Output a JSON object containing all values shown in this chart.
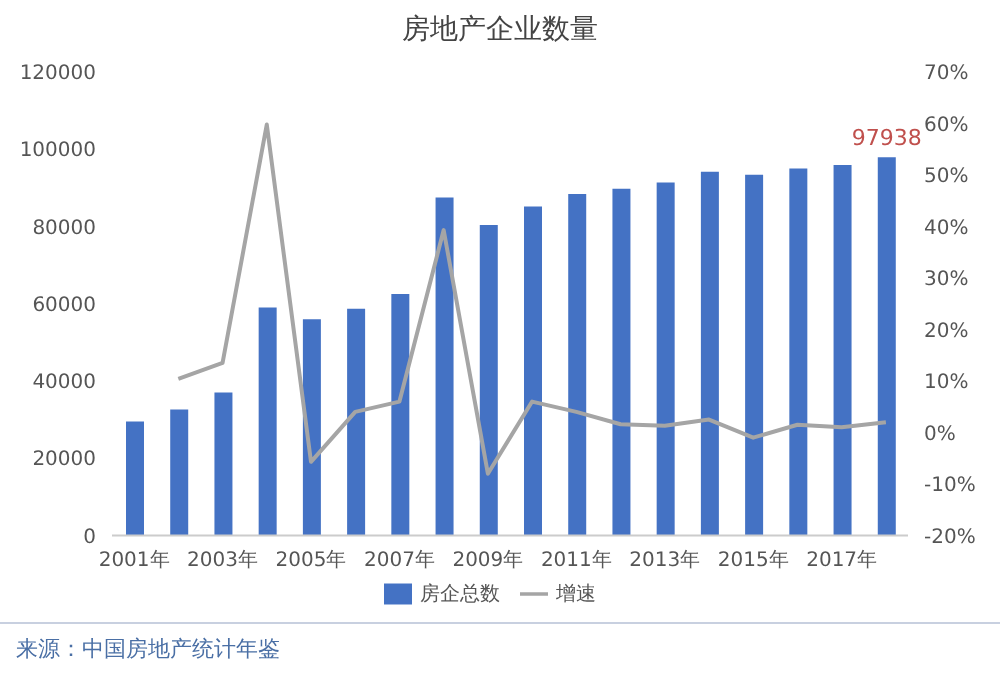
{
  "chart_data": {
    "type": "bar",
    "title": "房地产企业数量",
    "categories": [
      "2001年",
      null,
      "2003年",
      null,
      "2005年",
      null,
      "2007年",
      null,
      "2009年",
      null,
      "2011年",
      null,
      "2013年",
      null,
      "2015年",
      null,
      "2017年",
      null
    ],
    "series": [
      {
        "name": "房企总数",
        "color": "#4472c4",
        "values": [
          29500,
          32600,
          37000,
          59000,
          56000,
          58700,
          62500,
          87500,
          80400,
          85200,
          88400,
          89800,
          91400,
          94200,
          93400,
          95000,
          95900,
          97938
        ],
        "value_labels": [
          null,
          null,
          null,
          null,
          null,
          null,
          null,
          null,
          null,
          null,
          null,
          null,
          null,
          null,
          null,
          null,
          null,
          "97938"
        ]
      },
      {
        "name": "增速",
        "type": "line",
        "axis": "y2",
        "color": "#a5a5a5",
        "values": [
          null,
          10.4,
          13.5,
          59.8,
          -5.7,
          4,
          6,
          39.3,
          -8,
          6,
          4,
          1.6,
          1.3,
          2.5,
          -1,
          1.5,
          1,
          2
        ]
      }
    ],
    "ylim": [
      0,
      120000
    ],
    "yticks": [
      0,
      20000,
      40000,
      60000,
      80000,
      100000,
      120000
    ],
    "y2lim": [
      -20,
      70
    ],
    "y2ticks": [
      {
        "value": -20,
        "label": "-20%"
      },
      {
        "value": -10,
        "label": "-10%"
      },
      {
        "value": 0,
        "label": "0%"
      },
      {
        "value": 10,
        "label": "10%"
      },
      {
        "value": 20,
        "label": "20%"
      },
      {
        "value": 30,
        "label": "30%"
      },
      {
        "value": 40,
        "label": "40%"
      },
      {
        "value": 50,
        "label": "50%"
      },
      {
        "value": 60,
        "label": "60%"
      },
      {
        "value": 70,
        "label": "70%"
      }
    ],
    "legend": "bottom",
    "grid": false,
    "marker": "none",
    "annotations": [
      "来源：中国房地产统计年鉴"
    ]
  }
}
